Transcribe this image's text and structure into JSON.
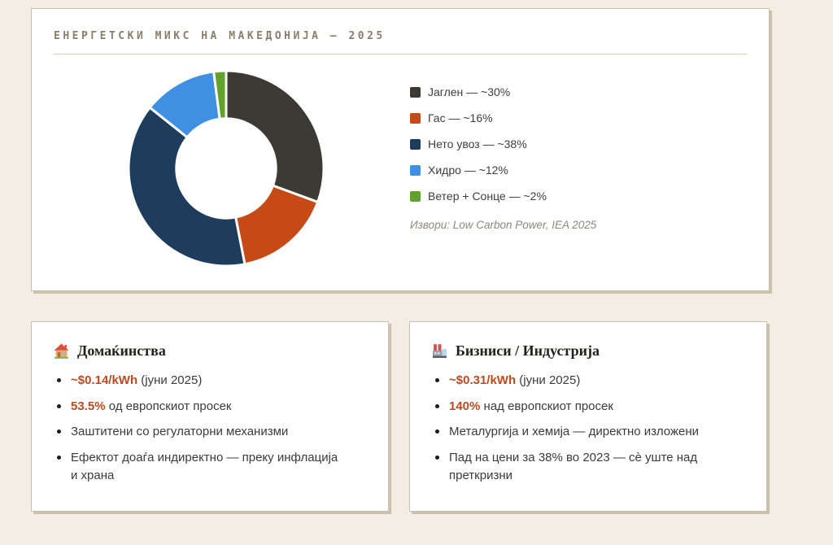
{
  "main_card": {
    "title": "ЕНЕРГЕТСКИ МИКС НА МАКЕДОНИЈА — 2025"
  },
  "chart_data": {
    "type": "pie",
    "variant": "doughnut",
    "title": "ЕНЕРГЕТСКИ МИКС НА МАКЕДОНИЈА — 2025",
    "labels": [
      "Јаглен",
      "Гас",
      "Нето увоз",
      "Хидро",
      "Ветер + Сонце"
    ],
    "values": [
      30,
      16,
      38,
      12,
      2
    ],
    "unit": "percent",
    "legend_labels": [
      "Јаглен — ~30%",
      "Гас — ~16%",
      "Нето увоз — ~38%",
      "Хидро — ~12%",
      "Ветер + Сонце — ~2%"
    ],
    "colors": [
      "#3b3b33",
      "#c54a15",
      "#1e3d5c",
      "#3f90e2",
      "#62a12d"
    ],
    "cutout_ratio": 0.51,
    "start_angle_deg": 0,
    "direction": "clockwise",
    "legend_position": "right",
    "source_note": "Извори: Low Carbon Power, IEA 2025"
  },
  "info_cards": [
    {
      "icon": "house-icon",
      "title": "Домаќинства",
      "bullets": [
        {
          "highlight": "~$0.14/kWh",
          "text": " (јуни 2025)"
        },
        {
          "highlight": "53.5%",
          "text": " од европскиот просек"
        },
        {
          "highlight": "",
          "text": "Заштитени со регулаторни механизми"
        },
        {
          "highlight": "",
          "text": "Ефектот доаѓа индиректно — преку инфлација и храна"
        }
      ]
    },
    {
      "icon": "factory-icon",
      "title": "Бизниси / Индустрија",
      "bullets": [
        {
          "highlight": "~$0.31/kWh",
          "text": " (јуни 2025)"
        },
        {
          "highlight": "140%",
          "text": " над европскиот просек"
        },
        {
          "highlight": "",
          "text": "Металургија и хемија — директно изложени"
        },
        {
          "highlight": "",
          "text": "Пад на цени за 38% во 2023 — сè уште над преткризни"
        }
      ]
    }
  ],
  "colors": {
    "page_background": "#f3eee5",
    "card_border": "#cbc1ab",
    "accent": "#bd4a1f",
    "title_text": "#8b7e6b",
    "body_text": "#3b3b3b",
    "muted_text": "#8f887b"
  }
}
